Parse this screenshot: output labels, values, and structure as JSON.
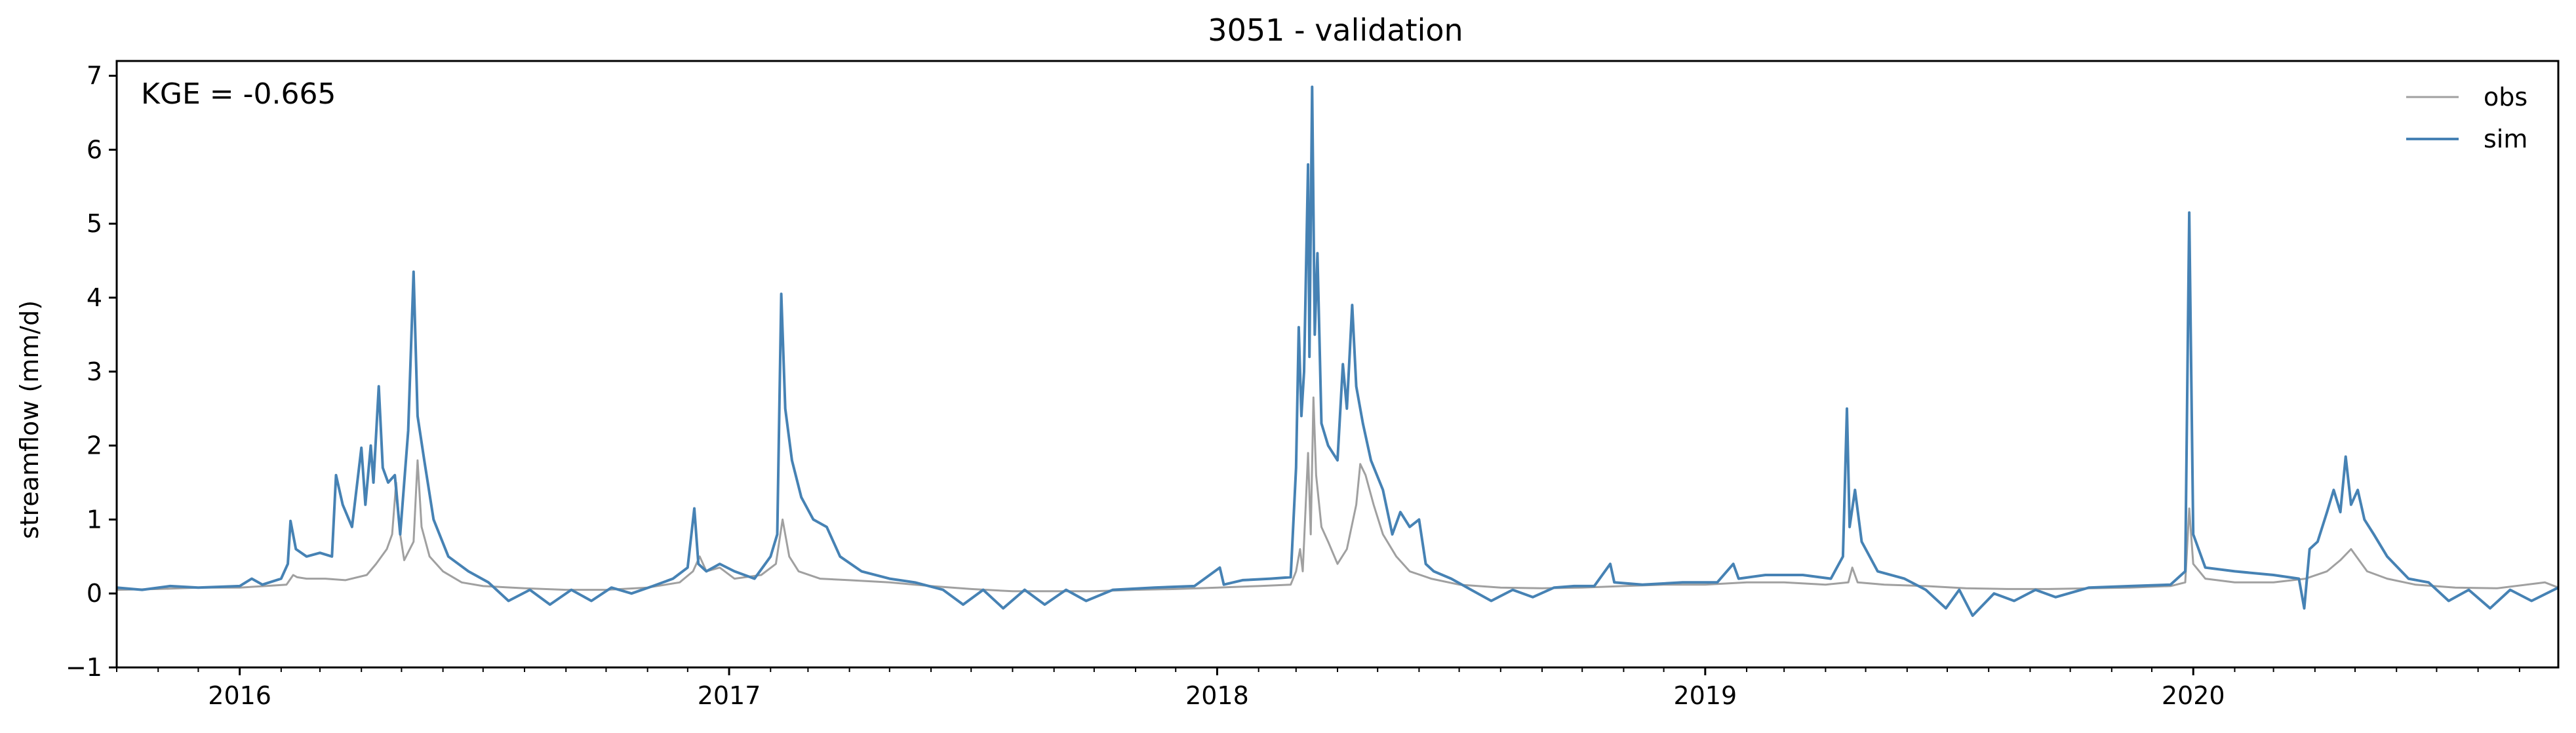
{
  "chart_data": {
    "type": "line",
    "title": "3051 - validation",
    "xlabel": "",
    "ylabel": "streamflow (mm/d)",
    "xlim": [
      "2015-10-01",
      "2020-09-30"
    ],
    "ylim": [
      -1,
      7.2
    ],
    "yticks": [
      -1,
      0,
      1,
      2,
      3,
      4,
      5,
      6,
      7
    ],
    "xticks": [
      {
        "date": "2016-01-01",
        "label": "2016"
      },
      {
        "date": "2017-01-01",
        "label": "2017"
      },
      {
        "date": "2018-01-01",
        "label": "2018"
      },
      {
        "date": "2019-01-01",
        "label": "2019"
      },
      {
        "date": "2020-01-01",
        "label": "2020"
      }
    ],
    "annotation": "KGE = -0.665",
    "legend": {
      "position": "top-right"
    },
    "grid": false,
    "series": [
      {
        "name": "obs",
        "color": "#a0a0a0",
        "points": [
          [
            "2015-10-01",
            0.05
          ],
          [
            "2015-11-01",
            0.06
          ],
          [
            "2015-12-01",
            0.08
          ],
          [
            "2016-01-01",
            0.08
          ],
          [
            "2016-01-20",
            0.1
          ],
          [
            "2016-02-05",
            0.12
          ],
          [
            "2016-02-10",
            0.25
          ],
          [
            "2016-02-13",
            0.22
          ],
          [
            "2016-02-20",
            0.2
          ],
          [
            "2016-03-05",
            0.2
          ],
          [
            "2016-03-20",
            0.18
          ],
          [
            "2016-04-05",
            0.25
          ],
          [
            "2016-04-12",
            0.4
          ],
          [
            "2016-04-20",
            0.6
          ],
          [
            "2016-04-24",
            0.8
          ],
          [
            "2016-04-27",
            1.5
          ],
          [
            "2016-04-30",
            0.8
          ],
          [
            "2016-05-03",
            0.45
          ],
          [
            "2016-05-10",
            0.7
          ],
          [
            "2016-05-13",
            1.8
          ],
          [
            "2016-05-16",
            0.9
          ],
          [
            "2016-05-22",
            0.5
          ],
          [
            "2016-06-01",
            0.3
          ],
          [
            "2016-06-15",
            0.15
          ],
          [
            "2016-07-01",
            0.1
          ],
          [
            "2016-08-01",
            0.07
          ],
          [
            "2016-09-01",
            0.05
          ],
          [
            "2016-10-01",
            0.05
          ],
          [
            "2016-11-01",
            0.08
          ],
          [
            "2016-11-25",
            0.15
          ],
          [
            "2016-12-05",
            0.3
          ],
          [
            "2016-12-10",
            0.5
          ],
          [
            "2016-12-15",
            0.3
          ],
          [
            "2016-12-25",
            0.35
          ],
          [
            "2017-01-05",
            0.2
          ],
          [
            "2017-01-25",
            0.25
          ],
          [
            "2017-02-05",
            0.4
          ],
          [
            "2017-02-10",
            1.0
          ],
          [
            "2017-02-15",
            0.5
          ],
          [
            "2017-02-22",
            0.3
          ],
          [
            "2017-03-10",
            0.2
          ],
          [
            "2017-04-01",
            0.18
          ],
          [
            "2017-05-01",
            0.15
          ],
          [
            "2017-06-01",
            0.1
          ],
          [
            "2017-07-01",
            0.06
          ],
          [
            "2017-08-01",
            0.03
          ],
          [
            "2017-09-01",
            0.03
          ],
          [
            "2017-10-01",
            0.03
          ],
          [
            "2017-11-01",
            0.05
          ],
          [
            "2017-12-01",
            0.06
          ],
          [
            "2018-01-01",
            0.08
          ],
          [
            "2018-02-01",
            0.1
          ],
          [
            "2018-02-25",
            0.12
          ],
          [
            "2018-03-01",
            0.3
          ],
          [
            "2018-03-04",
            0.6
          ],
          [
            "2018-03-06",
            0.3
          ],
          [
            "2018-03-10",
            1.9
          ],
          [
            "2018-03-12",
            0.8
          ],
          [
            "2018-03-14",
            2.65
          ],
          [
            "2018-03-16",
            1.6
          ],
          [
            "2018-03-20",
            0.9
          ],
          [
            "2018-03-25",
            0.7
          ],
          [
            "2018-04-01",
            0.4
          ],
          [
            "2018-04-08",
            0.6
          ],
          [
            "2018-04-15",
            1.2
          ],
          [
            "2018-04-18",
            1.75
          ],
          [
            "2018-04-22",
            1.6
          ],
          [
            "2018-04-28",
            1.2
          ],
          [
            "2018-05-05",
            0.8
          ],
          [
            "2018-05-15",
            0.5
          ],
          [
            "2018-05-25",
            0.3
          ],
          [
            "2018-06-10",
            0.2
          ],
          [
            "2018-07-01",
            0.12
          ],
          [
            "2018-08-01",
            0.08
          ],
          [
            "2018-09-01",
            0.07
          ],
          [
            "2018-10-01",
            0.08
          ],
          [
            "2018-11-01",
            0.1
          ],
          [
            "2018-12-01",
            0.12
          ],
          [
            "2019-01-01",
            0.12
          ],
          [
            "2019-02-01",
            0.15
          ],
          [
            "2019-03-01",
            0.15
          ],
          [
            "2019-04-01",
            0.12
          ],
          [
            "2019-04-18",
            0.15
          ],
          [
            "2019-04-21",
            0.35
          ],
          [
            "2019-04-25",
            0.15
          ],
          [
            "2019-05-15",
            0.12
          ],
          [
            "2019-06-15",
            0.1
          ],
          [
            "2019-07-15",
            0.07
          ],
          [
            "2019-08-15",
            0.06
          ],
          [
            "2019-09-15",
            0.06
          ],
          [
            "2019-10-15",
            0.07
          ],
          [
            "2019-11-15",
            0.08
          ],
          [
            "2019-12-15",
            0.1
          ],
          [
            "2019-12-26",
            0.15
          ],
          [
            "2019-12-29",
            1.15
          ],
          [
            "2020-01-01",
            0.4
          ],
          [
            "2020-01-10",
            0.2
          ],
          [
            "2020-02-01",
            0.15
          ],
          [
            "2020-03-01",
            0.15
          ],
          [
            "2020-03-25",
            0.2
          ],
          [
            "2020-04-10",
            0.3
          ],
          [
            "2020-04-20",
            0.45
          ],
          [
            "2020-04-28",
            0.6
          ],
          [
            "2020-05-02",
            0.5
          ],
          [
            "2020-05-10",
            0.3
          ],
          [
            "2020-05-25",
            0.2
          ],
          [
            "2020-06-15",
            0.12
          ],
          [
            "2020-07-15",
            0.08
          ],
          [
            "2020-08-15",
            0.07
          ],
          [
            "2020-09-20",
            0.15
          ],
          [
            "2020-09-30",
            0.08
          ]
        ]
      },
      {
        "name": "sim",
        "color": "#4682b4",
        "points": [
          [
            "2015-10-01",
            0.08
          ],
          [
            "2015-10-20",
            0.05
          ],
          [
            "2015-11-10",
            0.1
          ],
          [
            "2015-12-01",
            0.08
          ],
          [
            "2016-01-01",
            0.1
          ],
          [
            "2016-01-10",
            0.2
          ],
          [
            "2016-01-18",
            0.12
          ],
          [
            "2016-02-01",
            0.2
          ],
          [
            "2016-02-06",
            0.4
          ],
          [
            "2016-02-08",
            0.98
          ],
          [
            "2016-02-12",
            0.6
          ],
          [
            "2016-02-20",
            0.5
          ],
          [
            "2016-03-01",
            0.55
          ],
          [
            "2016-03-10",
            0.5
          ],
          [
            "2016-03-13",
            1.6
          ],
          [
            "2016-03-18",
            1.2
          ],
          [
            "2016-03-25",
            0.9
          ],
          [
            "2016-04-01",
            1.97
          ],
          [
            "2016-04-04",
            1.2
          ],
          [
            "2016-04-08",
            2.0
          ],
          [
            "2016-04-10",
            1.5
          ],
          [
            "2016-04-14",
            2.8
          ],
          [
            "2016-04-17",
            1.7
          ],
          [
            "2016-04-21",
            1.5
          ],
          [
            "2016-04-26",
            1.6
          ],
          [
            "2016-04-30",
            0.8
          ],
          [
            "2016-05-06",
            2.2
          ],
          [
            "2016-05-10",
            4.35
          ],
          [
            "2016-05-13",
            2.4
          ],
          [
            "2016-05-18",
            1.8
          ],
          [
            "2016-05-25",
            1.0
          ],
          [
            "2016-06-05",
            0.5
          ],
          [
            "2016-06-20",
            0.3
          ],
          [
            "2016-07-05",
            0.15
          ],
          [
            "2016-07-20",
            -0.1
          ],
          [
            "2016-08-05",
            0.05
          ],
          [
            "2016-08-20",
            -0.15
          ],
          [
            "2016-09-05",
            0.05
          ],
          [
            "2016-09-20",
            -0.1
          ],
          [
            "2016-10-05",
            0.08
          ],
          [
            "2016-10-20",
            0.0
          ],
          [
            "2016-11-05",
            0.1
          ],
          [
            "2016-11-20",
            0.2
          ],
          [
            "2016-12-01",
            0.35
          ],
          [
            "2016-12-06",
            1.15
          ],
          [
            "2016-12-09",
            0.4
          ],
          [
            "2016-12-15",
            0.3
          ],
          [
            "2016-12-25",
            0.4
          ],
          [
            "2017-01-05",
            0.3
          ],
          [
            "2017-01-20",
            0.2
          ],
          [
            "2017-02-01",
            0.5
          ],
          [
            "2017-02-06",
            0.8
          ],
          [
            "2017-02-09",
            4.05
          ],
          [
            "2017-02-12",
            2.5
          ],
          [
            "2017-02-17",
            1.8
          ],
          [
            "2017-02-24",
            1.3
          ],
          [
            "2017-03-05",
            1.0
          ],
          [
            "2017-03-15",
            0.9
          ],
          [
            "2017-03-25",
            0.5
          ],
          [
            "2017-04-10",
            0.3
          ],
          [
            "2017-05-01",
            0.2
          ],
          [
            "2017-05-20",
            0.15
          ],
          [
            "2017-06-10",
            0.05
          ],
          [
            "2017-06-25",
            -0.15
          ],
          [
            "2017-07-10",
            0.05
          ],
          [
            "2017-07-25",
            -0.2
          ],
          [
            "2017-08-10",
            0.05
          ],
          [
            "2017-08-25",
            -0.15
          ],
          [
            "2017-09-10",
            0.05
          ],
          [
            "2017-09-25",
            -0.1
          ],
          [
            "2017-10-15",
            0.05
          ],
          [
            "2017-11-15",
            0.08
          ],
          [
            "2017-12-15",
            0.1
          ],
          [
            "2018-01-03",
            0.35
          ],
          [
            "2018-01-06",
            0.12
          ],
          [
            "2018-01-20",
            0.18
          ],
          [
            "2018-02-10",
            0.2
          ],
          [
            "2018-02-25",
            0.22
          ],
          [
            "2018-03-01",
            1.7
          ],
          [
            "2018-03-03",
            3.6
          ],
          [
            "2018-03-05",
            2.4
          ],
          [
            "2018-03-07",
            3.0
          ],
          [
            "2018-03-10",
            5.8
          ],
          [
            "2018-03-11",
            3.2
          ],
          [
            "2018-03-13",
            6.85
          ],
          [
            "2018-03-15",
            3.5
          ],
          [
            "2018-03-17",
            4.6
          ],
          [
            "2018-03-20",
            2.3
          ],
          [
            "2018-03-25",
            2.0
          ],
          [
            "2018-04-01",
            1.8
          ],
          [
            "2018-04-05",
            3.1
          ],
          [
            "2018-04-08",
            2.5
          ],
          [
            "2018-04-12",
            3.9
          ],
          [
            "2018-04-15",
            2.8
          ],
          [
            "2018-04-20",
            2.3
          ],
          [
            "2018-04-26",
            1.8
          ],
          [
            "2018-05-05",
            1.4
          ],
          [
            "2018-05-12",
            0.8
          ],
          [
            "2018-05-18",
            1.1
          ],
          [
            "2018-05-25",
            0.9
          ],
          [
            "2018-06-01",
            1.0
          ],
          [
            "2018-06-06",
            0.4
          ],
          [
            "2018-06-12",
            0.3
          ],
          [
            "2018-06-25",
            0.2
          ],
          [
            "2018-07-10",
            0.05
          ],
          [
            "2018-07-25",
            -0.1
          ],
          [
            "2018-08-10",
            0.05
          ],
          [
            "2018-08-25",
            -0.05
          ],
          [
            "2018-09-10",
            0.08
          ],
          [
            "2018-09-25",
            0.1
          ],
          [
            "2018-10-10",
            0.1
          ],
          [
            "2018-10-22",
            0.4
          ],
          [
            "2018-10-25",
            0.15
          ],
          [
            "2018-11-15",
            0.12
          ],
          [
            "2018-12-15",
            0.15
          ],
          [
            "2019-01-10",
            0.15
          ],
          [
            "2019-01-22",
            0.4
          ],
          [
            "2019-01-26",
            0.2
          ],
          [
            "2019-02-15",
            0.25
          ],
          [
            "2019-03-15",
            0.25
          ],
          [
            "2019-04-05",
            0.2
          ],
          [
            "2019-04-14",
            0.5
          ],
          [
            "2019-04-17",
            2.5
          ],
          [
            "2019-04-19",
            0.9
          ],
          [
            "2019-04-23",
            1.4
          ],
          [
            "2019-04-28",
            0.7
          ],
          [
            "2019-05-10",
            0.3
          ],
          [
            "2019-05-30",
            0.2
          ],
          [
            "2019-06-15",
            0.05
          ],
          [
            "2019-06-30",
            -0.2
          ],
          [
            "2019-07-10",
            0.05
          ],
          [
            "2019-07-20",
            -0.3
          ],
          [
            "2019-08-05",
            0.0
          ],
          [
            "2019-08-20",
            -0.1
          ],
          [
            "2019-09-05",
            0.05
          ],
          [
            "2019-09-20",
            -0.05
          ],
          [
            "2019-10-15",
            0.08
          ],
          [
            "2019-11-15",
            0.1
          ],
          [
            "2019-12-15",
            0.12
          ],
          [
            "2019-12-26",
            0.3
          ],
          [
            "2019-12-29",
            5.15
          ],
          [
            "2020-01-01",
            0.8
          ],
          [
            "2020-01-10",
            0.35
          ],
          [
            "2020-02-01",
            0.3
          ],
          [
            "2020-03-01",
            0.25
          ],
          [
            "2020-03-20",
            0.2
          ],
          [
            "2020-03-24",
            -0.2
          ],
          [
            "2020-03-28",
            0.6
          ],
          [
            "2020-04-03",
            0.7
          ],
          [
            "2020-04-10",
            1.1
          ],
          [
            "2020-04-15",
            1.4
          ],
          [
            "2020-04-20",
            1.1
          ],
          [
            "2020-04-24",
            1.85
          ],
          [
            "2020-04-28",
            1.2
          ],
          [
            "2020-05-03",
            1.4
          ],
          [
            "2020-05-08",
            1.0
          ],
          [
            "2020-05-15",
            0.8
          ],
          [
            "2020-05-25",
            0.5
          ],
          [
            "2020-06-10",
            0.2
          ],
          [
            "2020-06-25",
            0.15
          ],
          [
            "2020-07-10",
            -0.1
          ],
          [
            "2020-07-25",
            0.05
          ],
          [
            "2020-08-10",
            -0.2
          ],
          [
            "2020-08-25",
            0.05
          ],
          [
            "2020-09-10",
            -0.1
          ],
          [
            "2020-09-30",
            0.08
          ]
        ]
      }
    ]
  }
}
